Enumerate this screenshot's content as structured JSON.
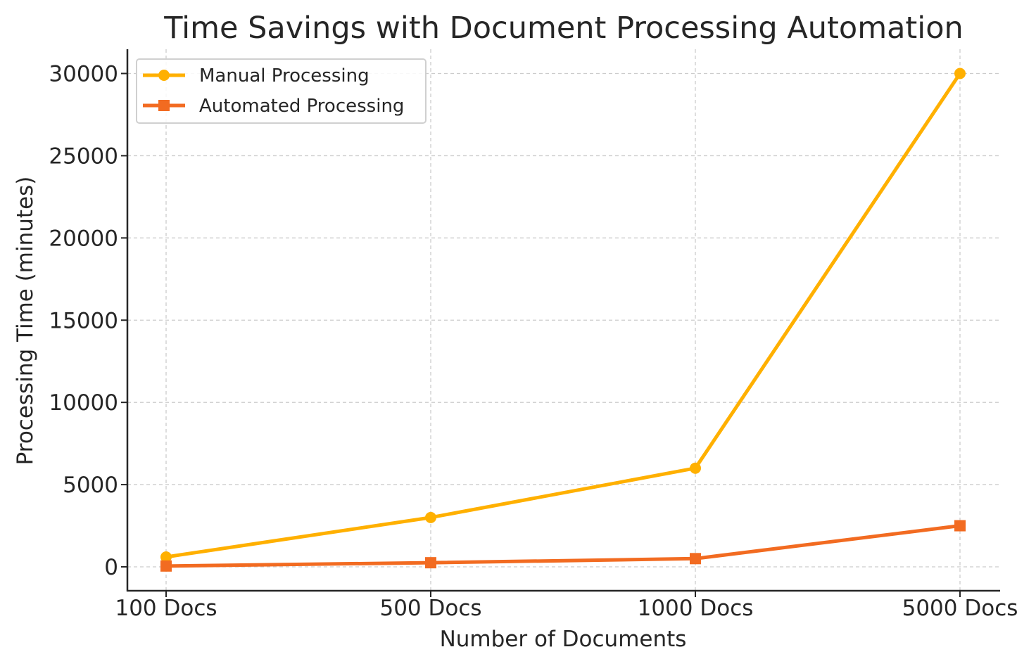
{
  "chart_data": {
    "type": "line",
    "title": "Time Savings with Document Processing Automation",
    "xlabel": "Number of Documents",
    "ylabel": "Processing Time (minutes)",
    "categories": [
      "100 Docs",
      "500 Docs",
      "1000 Docs",
      "5000 Docs"
    ],
    "series": [
      {
        "name": "Manual Processing",
        "values": [
          600,
          3000,
          6000,
          30000
        ],
        "color": "#FFB000",
        "marker": "circle"
      },
      {
        "name": "Automated Processing",
        "values": [
          50,
          250,
          500,
          2500
        ],
        "color": "#F26B21",
        "marker": "square"
      }
    ],
    "yticks": [
      0,
      5000,
      10000,
      15000,
      20000,
      25000,
      30000
    ],
    "ylim": [
      -1500,
      31500
    ],
    "grid": true,
    "legend_position": "upper left"
  }
}
